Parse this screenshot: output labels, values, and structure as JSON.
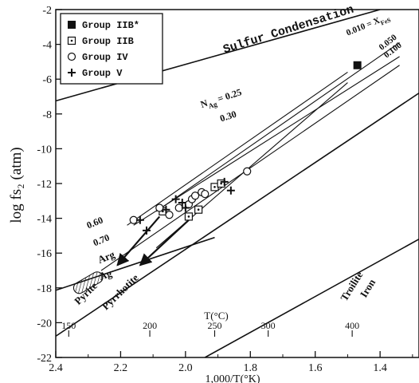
{
  "chart_data": {
    "type": "scatter",
    "xlabel": "1,000/T(°K)",
    "ylabel": "log fs₂ (atm)",
    "xlim": [
      2.4,
      1.28
    ],
    "ylim": [
      -22,
      -2
    ],
    "x_reversed": true,
    "x_ticks": [
      "2.4",
      "2.2",
      "2.0",
      "1.8",
      "1.6",
      "1.4"
    ],
    "y_ticks": [
      "-2",
      "-4",
      "-6",
      "-8",
      "-10",
      "-12",
      "-14",
      "-16",
      "-18",
      "-20",
      "-22"
    ],
    "top_axis_label": "T(°C)",
    "top_ticks": [
      {
        "label": "150",
        "x": 2.36
      },
      {
        "label": "200",
        "x": 2.11
      },
      {
        "label": "250",
        "x": 1.91
      },
      {
        "label": "300",
        "x": 1.745
      },
      {
        "label": "400",
        "x": 1.486
      }
    ],
    "legend": {
      "placement": "top-left",
      "entries": [
        {
          "label": "Group IIB*",
          "marker": "filled-square"
        },
        {
          "label": "Group IIB",
          "marker": "dotted-square"
        },
        {
          "label": "Group IV",
          "marker": "open-circle"
        },
        {
          "label": "Group V",
          "marker": "plus"
        }
      ]
    },
    "series": [
      {
        "marker": "filled-square",
        "points": [
          [
            1.47,
            -5.2
          ]
        ]
      },
      {
        "marker": "dotted-square",
        "points": [
          [
            2.07,
            -13.6
          ],
          [
            1.99,
            -13.9
          ],
          [
            1.96,
            -13.5
          ],
          [
            1.91,
            -12.2
          ],
          [
            1.89,
            -12.0
          ]
        ]
      },
      {
        "marker": "open-circle",
        "points": [
          [
            2.16,
            -14.1
          ],
          [
            2.08,
            -13.4
          ],
          [
            2.05,
            -13.8
          ],
          [
            2.02,
            -13.4
          ],
          [
            1.99,
            -13.2
          ],
          [
            1.98,
            -12.9
          ],
          [
            1.97,
            -12.7
          ],
          [
            1.95,
            -12.5
          ],
          [
            1.94,
            -12.6
          ],
          [
            1.81,
            -11.3
          ]
        ]
      },
      {
        "marker": "plus",
        "points": [
          [
            2.14,
            -14.1
          ],
          [
            2.12,
            -14.7
          ],
          [
            2.06,
            -13.5
          ],
          [
            2.03,
            -12.9
          ],
          [
            2.01,
            -13.1
          ],
          [
            2.0,
            -13.4
          ],
          [
            1.88,
            -11.9
          ],
          [
            1.86,
            -12.4
          ]
        ]
      }
    ],
    "lines": [
      {
        "name": "sulfur-condensation",
        "points": [
          [
            2.41,
            -7.3
          ],
          [
            1.4,
            -2.0
          ]
        ]
      },
      {
        "name": "pyrite-pyrrhotite",
        "points": [
          [
            2.41,
            -20.9
          ],
          [
            1.28,
            -6.8
          ]
        ]
      },
      {
        "name": "troilite-iron",
        "points": [
          [
            1.94,
            -22.0
          ],
          [
            1.28,
            -15.2
          ]
        ]
      },
      {
        "name": "arg-ag",
        "points": [
          [
            2.41,
            -18.2
          ],
          [
            1.91,
            -15.1
          ]
        ]
      },
      {
        "name": "xfes-0.010",
        "points": [
          [
            2.09,
            -13.6
          ],
          [
            1.34,
            -3.9
          ]
        ]
      },
      {
        "name": "xfes-0.050",
        "points": [
          [
            2.16,
            -14.4
          ],
          [
            1.34,
            -4.7
          ]
        ]
      },
      {
        "name": "xfes-0.100",
        "points": [
          [
            2.26,
            -17.0
          ],
          [
            1.34,
            -5.2
          ]
        ]
      },
      {
        "name": "nag-0.60",
        "points": [
          [
            2.18,
            -14.4
          ],
          [
            1.5,
            -5.6
          ]
        ]
      },
      {
        "name": "nag-0.70",
        "points": [
          [
            2.09,
            -15.7
          ],
          [
            1.5,
            -6.2
          ]
        ]
      }
    ],
    "arrows": [
      {
        "from": [
          2.08,
          -13.9
        ],
        "to": [
          2.21,
          -16.7
        ]
      },
      {
        "from": [
          1.99,
          -14.1
        ],
        "to": [
          2.14,
          -16.7
        ]
      }
    ],
    "region": {
      "name": "hatched",
      "from": [
        2.34,
        -17.7
      ],
      "to": [
        2.26,
        -17.7
      ]
    },
    "annotations": [
      {
        "text": "Sulfur Condensation",
        "kind": "phase"
      },
      {
        "text": "Pyrite",
        "kind": "phase"
      },
      {
        "text": "Pyrrhotite",
        "kind": "phase"
      },
      {
        "text": "Troilite",
        "kind": "phase"
      },
      {
        "text": "Iron",
        "kind": "phase"
      },
      {
        "text": "Arg",
        "kind": "phase"
      },
      {
        "text": "Ag",
        "kind": "phase"
      },
      {
        "text": "0.010 = X",
        "kind": "composition",
        "sub": "FeS"
      },
      {
        "text": "0.050",
        "kind": "composition"
      },
      {
        "text": "0.100",
        "kind": "composition"
      },
      {
        "text": "N",
        "kind": "composition",
        "sub": "Ag",
        "suffix": " = 0.25"
      },
      {
        "text": "0.30",
        "kind": "composition"
      },
      {
        "text": "0.60",
        "kind": "composition"
      },
      {
        "text": "0.70",
        "kind": "composition"
      }
    ],
    "grid": false
  }
}
